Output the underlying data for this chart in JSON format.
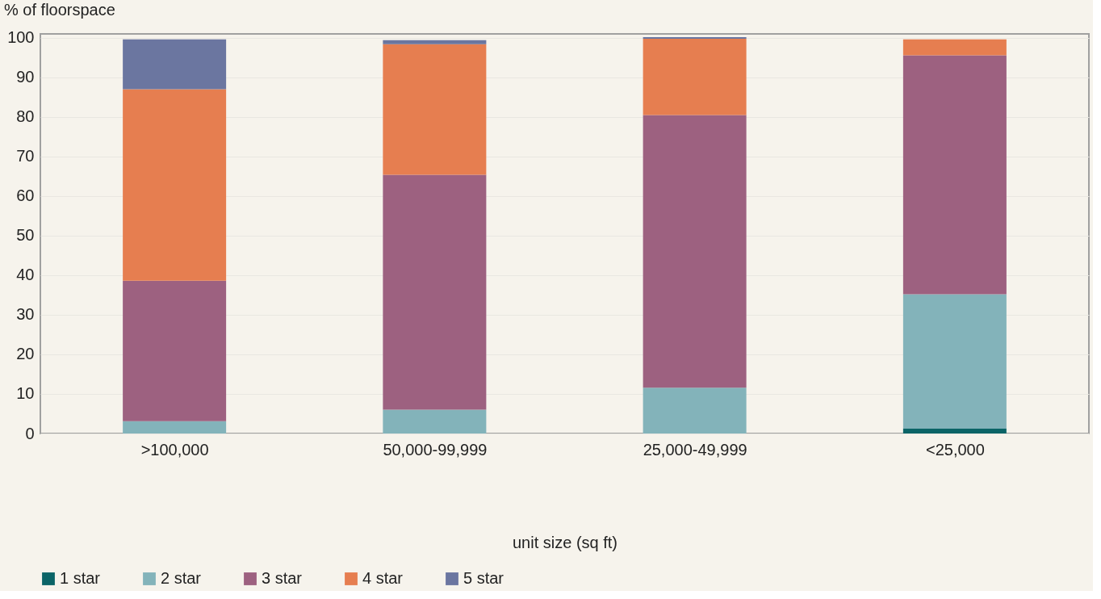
{
  "chart_data": {
    "type": "bar",
    "stacked": true,
    "ylabel": "% of floorspace",
    "xlabel": "unit size (sq ft)",
    "categories": [
      ">100,000",
      "50,000-99,999",
      "25,000-49,999",
      "<25,000"
    ],
    "series": [
      {
        "name": "1 star",
        "color": "#0b6467",
        "values": [
          0,
          0,
          0,
          1.2
        ]
      },
      {
        "name": "2 star",
        "color": "#83b3ba",
        "values": [
          3.1,
          6.0,
          11.6,
          34.0
        ]
      },
      {
        "name": "3 star",
        "color": "#9d6180",
        "values": [
          35.5,
          59.4,
          68.9,
          60.4
        ]
      },
      {
        "name": "4 star",
        "color": "#e67e50",
        "values": [
          48.4,
          33.0,
          19.3,
          4.0
        ]
      },
      {
        "name": "5 star",
        "color": "#6b76a0",
        "values": [
          12.6,
          1.0,
          0.4,
          0
        ]
      }
    ],
    "ylim": [
      0,
      101
    ],
    "yticks": [
      0,
      10,
      20,
      30,
      40,
      50,
      60,
      70,
      80,
      90,
      100
    ],
    "grid": "y",
    "legend": "bottom"
  }
}
